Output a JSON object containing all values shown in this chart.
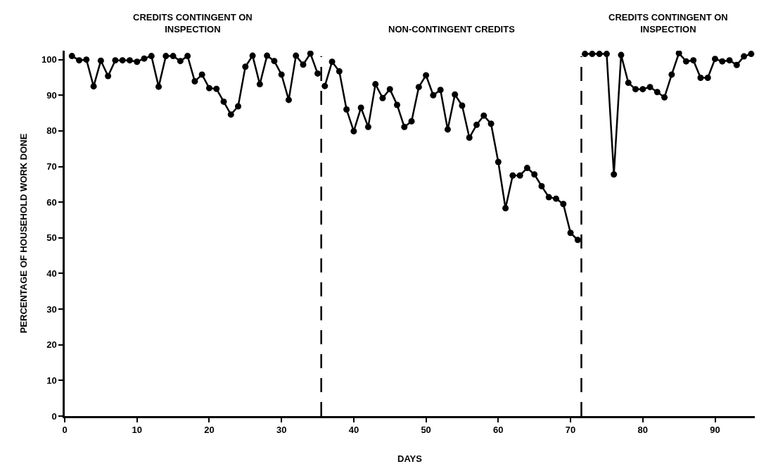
{
  "chart_data": {
    "type": "line",
    "xlabel": "DAYS",
    "ylabel": "PERCENTAGE OF HOUSEHOLD WORK DONE",
    "annotations": [
      "CREDITS CONTINGENT ON\nINSPECTION",
      "NON-CONTINGENT CREDITS",
      "CREDITS CONTINGENT ON\nINSPECTION"
    ],
    "series": [
      {
        "color": "#000000",
        "x": [
          1,
          2,
          3,
          4,
          5,
          6,
          7,
          8,
          9,
          10,
          11,
          12,
          13,
          14,
          15,
          16,
          17,
          18,
          19,
          20,
          21,
          22,
          23,
          24,
          25,
          26,
          27,
          28,
          29,
          30,
          31,
          32,
          33,
          34,
          35
        ],
        "values": [
          101,
          99.8,
          100,
          92.5,
          99.7,
          95.4,
          99.8,
          99.8,
          99.8,
          99.4,
          100.3,
          101,
          92.4,
          101,
          101,
          99.6,
          101,
          93.9,
          95.8,
          92,
          91.8,
          88.2,
          84.6,
          86.9,
          98,
          101.1,
          93.1,
          101.1,
          99.6,
          95.8,
          88.7,
          101.1,
          98.6,
          101.7,
          96.1
        ]
      },
      {
        "color": "#000000",
        "x": [
          36,
          37,
          38,
          39,
          40,
          41,
          42,
          43,
          44,
          45,
          46,
          47,
          48,
          49,
          50,
          51,
          52,
          53,
          54,
          55,
          56,
          57,
          58,
          59,
          60,
          61,
          62,
          63,
          64,
          65,
          66,
          67,
          68,
          69,
          70,
          71
        ],
        "values": [
          92.6,
          99.4,
          96.7,
          86,
          79.9,
          86.5,
          81.1,
          93.1,
          89.2,
          91.7,
          87.3,
          81.1,
          82.7,
          92.3,
          95.6,
          90,
          91.5,
          80.4,
          90.2,
          87.1,
          78.1,
          81.7,
          84.3,
          82,
          71.3,
          58.3,
          67.5,
          67.5,
          69.6,
          67.8,
          64.5,
          61.4,
          61,
          59.5,
          51.4,
          49.4
        ]
      },
      {
        "color": "#000000",
        "x": [
          72,
          73,
          74,
          75,
          76,
          77,
          78,
          79,
          80,
          81,
          82,
          83,
          84,
          85,
          86,
          87,
          88,
          89,
          90,
          91,
          92,
          93,
          94,
          95
        ],
        "values": [
          101.6,
          101.6,
          101.6,
          101.6,
          67.8,
          101.3,
          93.5,
          91.7,
          91.7,
          92.3,
          90.9,
          89.4,
          95.8,
          101.8,
          99.5,
          99.8,
          94.9,
          94.9,
          100.2,
          99.5,
          99.8,
          98.5,
          100.9,
          101.6
        ]
      }
    ],
    "ref_lines": [
      {
        "axis": "x",
        "value": 35.5,
        "color": "#000000",
        "line_style": "dashed"
      },
      {
        "axis": "x",
        "value": 71.5,
        "color": "#000000",
        "line_style": "dashed"
      }
    ],
    "xlim": [
      0,
      95.5
    ],
    "xticks": [
      0,
      10,
      20,
      30,
      40,
      50,
      60,
      70,
      80,
      90
    ],
    "ylim": [
      0,
      102.5
    ],
    "yticks": [
      0,
      10,
      20,
      30,
      40,
      50,
      60,
      70,
      80,
      90,
      100
    ],
    "marker": "circle",
    "line_style": "solid"
  }
}
